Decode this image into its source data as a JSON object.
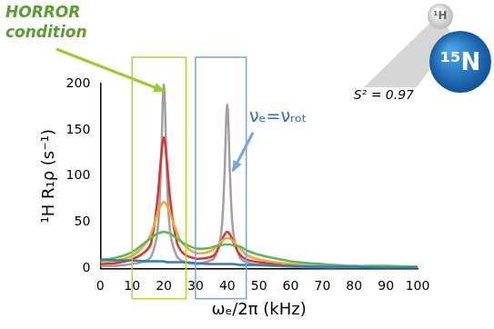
{
  "chart_data": {
    "type": "line",
    "x_label": "ωₑ/2π (kHz)",
    "y_label": "¹H R₁ρ (s⁻¹)",
    "x": [
      0,
      5,
      10,
      14,
      16,
      18,
      19,
      20,
      21,
      22,
      24,
      26,
      30,
      34,
      36,
      38,
      39,
      40,
      41,
      42,
      44,
      46,
      50,
      60,
      70,
      80,
      90,
      100
    ],
    "series": [
      {
        "color": "#2a7fc0",
        "values": [
          10,
          9,
          9,
          8,
          8,
          8,
          8,
          8,
          7,
          7,
          7,
          7,
          6,
          5,
          5,
          5,
          5,
          5,
          5,
          5,
          4,
          4,
          4,
          3,
          2,
          2,
          1,
          1
        ]
      },
      {
        "color": "#5cb85c",
        "values": [
          9,
          12,
          18,
          28,
          33,
          38,
          39,
          40,
          39,
          38,
          33,
          28,
          22,
          22,
          24,
          25,
          26,
          26,
          26,
          25,
          24,
          20,
          15,
          8,
          5,
          3,
          3,
          2
        ]
      },
      {
        "color": "#f0a830",
        "values": [
          7,
          9,
          14,
          26,
          38,
          60,
          68,
          72,
          68,
          60,
          40,
          27,
          17,
          18,
          22,
          29,
          32,
          33,
          32,
          29,
          22,
          15,
          10,
          5,
          3,
          2,
          2,
          2
        ]
      },
      {
        "color": "#e03030",
        "values": [
          5,
          6,
          10,
          18,
          28,
          75,
          115,
          142,
          115,
          75,
          30,
          17,
          11,
          12,
          15,
          28,
          36,
          40,
          36,
          28,
          15,
          10,
          7,
          4,
          3,
          2,
          2,
          2
        ]
      },
      {
        "color": "#a0a0a0",
        "values": [
          3,
          3,
          5,
          8,
          13,
          40,
          100,
          200,
          100,
          40,
          14,
          8,
          5,
          8,
          12,
          36,
          90,
          178,
          90,
          36,
          12,
          7,
          4,
          2,
          1,
          1,
          1,
          1
        ]
      }
    ],
    "xlim": [
      0,
      100
    ],
    "xticks": [
      0,
      10,
      20,
      30,
      40,
      50,
      60,
      70,
      80,
      90,
      100
    ],
    "ylim": [
      0,
      200
    ],
    "yticks": [
      0,
      50,
      100,
      150,
      200
    ],
    "grid": false,
    "annotations": [
      {
        "text": "HORROR condition",
        "color": "#5a9e2f",
        "box_color": "#b5d334",
        "x_range": [
          10,
          27
        ]
      },
      {
        "text": "νₑ=νᵣₒₜ",
        "color": "#2a6fc0",
        "box_color": "#7aa6dc",
        "x_range": [
          30,
          46
        ]
      },
      {
        "text": "S² = 0.97",
        "color": "#000000"
      },
      {
        "text": "¹H",
        "color": "#666666"
      },
      {
        "text": "¹⁵N",
        "color": "#ffffff"
      }
    ]
  }
}
